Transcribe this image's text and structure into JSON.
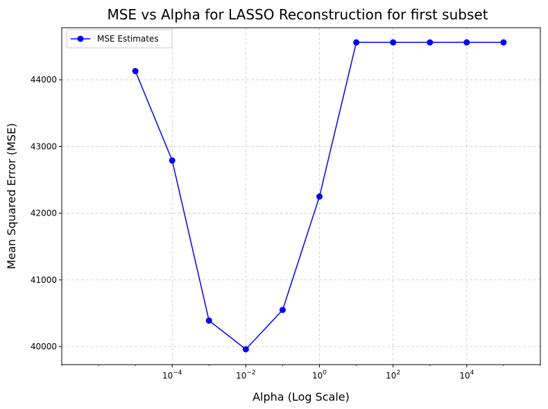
{
  "chart_data": {
    "type": "line",
    "title": "MSE vs Alpha for LASSO Reconstruction for first subset",
    "xlabel": "Alpha (Log Scale)",
    "ylabel": "Mean Squared Error (MSE)",
    "x_scale": "log",
    "xlim": [
      1e-07,
      1000000
    ],
    "ylim": [
      39730,
      44780
    ],
    "grid": true,
    "legend_position": "top-left",
    "x_ticks": [
      {
        "value": 0.0001,
        "base": "10",
        "exp": "−4"
      },
      {
        "value": 0.01,
        "base": "10",
        "exp": "−2"
      },
      {
        "value": 1,
        "base": "10",
        "exp": "0"
      },
      {
        "value": 100,
        "base": "10",
        "exp": "2"
      },
      {
        "value": 10000,
        "base": "10",
        "exp": "4"
      }
    ],
    "y_ticks": [
      40000,
      41000,
      42000,
      43000,
      44000
    ],
    "series": [
      {
        "name": "MSE Estimates",
        "color": "#0000ff",
        "marker": "circle",
        "x": [
          1e-05,
          0.0001,
          0.001,
          0.01,
          0.1,
          1,
          10,
          100,
          1000,
          10000,
          100000
        ],
        "y": [
          44130,
          42790,
          40390,
          39960,
          40550,
          42250,
          44560,
          44560,
          44560,
          44560,
          44560
        ]
      }
    ]
  }
}
